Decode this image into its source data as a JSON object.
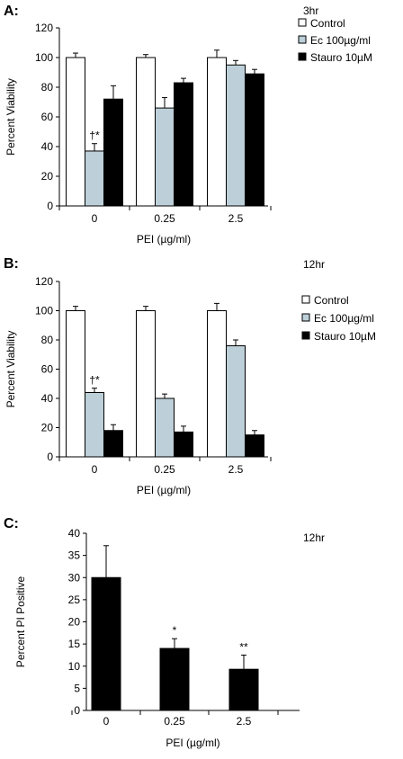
{
  "chart_data": [
    {
      "type": "bar",
      "panel_label": "A:",
      "note": "3hr",
      "categories": [
        "0",
        "0.25",
        "2.5"
      ],
      "xlabel": "PEI (µg/ml)",
      "ylabel": "Percent Viability",
      "ylim": [
        0,
        120
      ],
      "yticks": [
        0,
        20,
        40,
        60,
        80,
        100,
        120
      ],
      "legend_position": "right",
      "series": [
        {
          "name": "Control",
          "color": "#ffffff",
          "values": [
            100,
            100,
            100
          ],
          "errors": [
            3,
            2,
            5
          ]
        },
        {
          "name": "Ec 100µg/ml",
          "color": "#bdd0d9",
          "values": [
            37,
            66,
            95
          ],
          "errors": [
            5,
            7,
            3
          ]
        },
        {
          "name": "Stauro 10µM",
          "color": "#000000",
          "values": [
            72,
            83,
            89
          ],
          "errors": [
            9,
            3,
            3
          ]
        }
      ],
      "annotations": [
        {
          "text": "†*",
          "category": 0,
          "series": 1
        }
      ]
    },
    {
      "type": "bar",
      "panel_label": "B:",
      "note": "12hr",
      "categories": [
        "0",
        "0.25",
        "2.5"
      ],
      "xlabel": "PEI (µg/ml)",
      "ylabel": "Percent Viability",
      "ylim": [
        0,
        120
      ],
      "yticks": [
        0,
        20,
        40,
        60,
        80,
        100,
        120
      ],
      "legend_position": "right",
      "series": [
        {
          "name": "Control",
          "color": "#ffffff",
          "values": [
            100,
            100,
            100
          ],
          "errors": [
            3,
            3,
            5
          ]
        },
        {
          "name": "Ec 100µg/ml",
          "color": "#bdd0d9",
          "values": [
            44,
            40,
            76
          ],
          "errors": [
            3,
            3,
            4
          ]
        },
        {
          "name": "Stauro 10µM",
          "color": "#000000",
          "values": [
            18,
            17,
            15
          ],
          "errors": [
            4,
            4,
            3
          ]
        }
      ],
      "annotations": [
        {
          "text": "†*",
          "category": 0,
          "series": 1
        }
      ]
    },
    {
      "type": "bar",
      "panel_label": "C:",
      "note": "12hr",
      "categories": [
        "0",
        "0.25",
        "2.5"
      ],
      "xlabel": "PEI (µg/ml)",
      "ylabel": "Percent PI Positive",
      "ylim": [
        0,
        40
      ],
      "yticks": [
        0,
        5,
        10,
        15,
        20,
        25,
        30,
        35,
        40
      ],
      "series": [
        {
          "name": "",
          "color": "#000000",
          "values": [
            30,
            14,
            9.3
          ],
          "errors": [
            7.2,
            2.2,
            3.2
          ]
        }
      ],
      "annotations": [
        {
          "text": "*",
          "category": 1,
          "series": 0
        },
        {
          "text": "**",
          "category": 2,
          "series": 0
        }
      ]
    }
  ]
}
